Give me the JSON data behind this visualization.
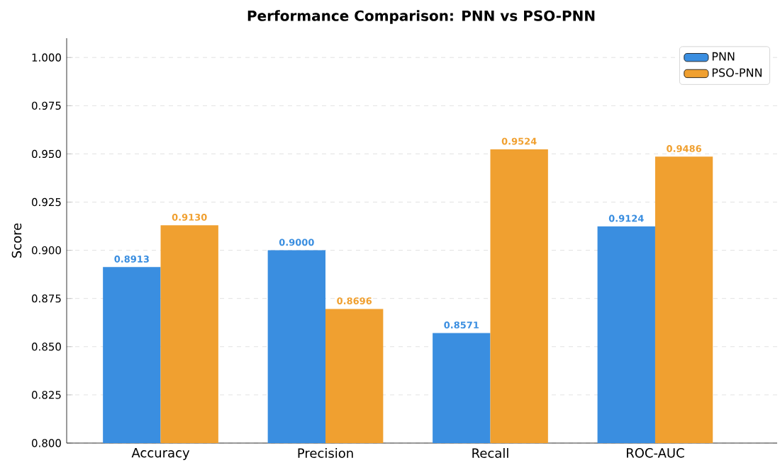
{
  "chart_data": {
    "type": "bar",
    "title": "Performance Comparison: PNN vs PSO-PNN",
    "ylabel": "Score",
    "categories": [
      "Accuracy",
      "Precision",
      "Recall",
      "ROC-AUC"
    ],
    "series": [
      {
        "name": "PNN",
        "color": "#3a8ee0",
        "values": [
          0.8913,
          0.9,
          0.8571,
          0.9124
        ],
        "value_labels": [
          "0.8913",
          "0.9000",
          "0.8571",
          "0.9124"
        ]
      },
      {
        "name": "PSO-PNN",
        "color": "#f0a030",
        "values": [
          0.913,
          0.8696,
          0.9524,
          0.9486
        ],
        "value_labels": [
          "0.9130",
          "0.8696",
          "0.9524",
          "0.9486"
        ]
      }
    ],
    "ylim": [
      0.8,
      1.01
    ],
    "yticks": [
      {
        "value": 0.8,
        "label": "0.800"
      },
      {
        "value": 0.825,
        "label": "0.825"
      },
      {
        "value": 0.85,
        "label": "0.850"
      },
      {
        "value": 0.875,
        "label": "0.875"
      },
      {
        "value": 0.9,
        "label": "0.900"
      },
      {
        "value": 0.925,
        "label": "0.925"
      },
      {
        "value": 0.95,
        "label": "0.950"
      },
      {
        "value": 0.975,
        "label": "0.975"
      },
      {
        "value": 1.0,
        "label": "1.000"
      }
    ],
    "grid": "y",
    "legend": "top right"
  }
}
